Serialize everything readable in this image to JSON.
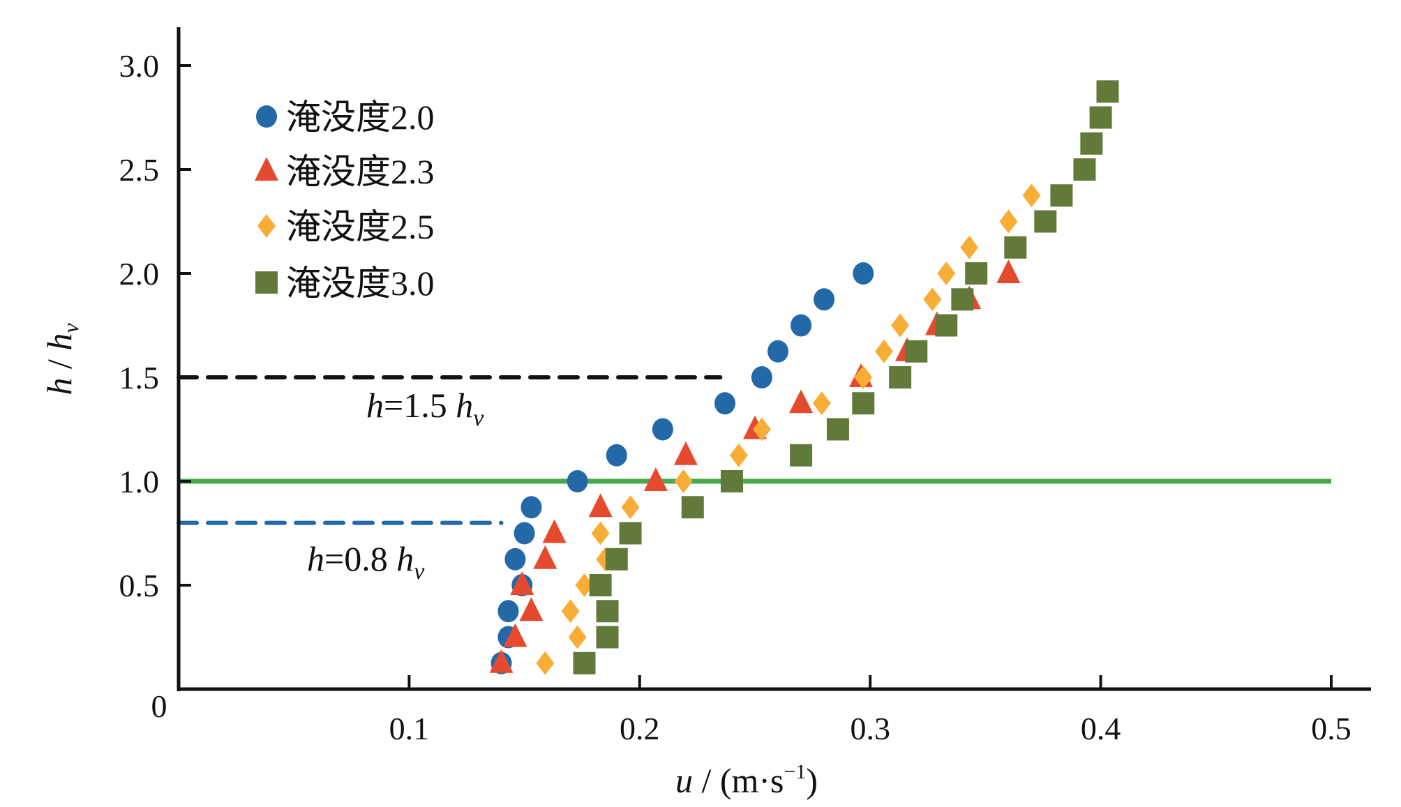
{
  "chart_data": {
    "type": "scatter",
    "xlabel": "u / (m·s⁻¹)",
    "xlabel_parts": {
      "var": "u",
      "unit": " / (m·s",
      "sup": "−1",
      "close": ")"
    },
    "ylabel_parts": {
      "var": "h",
      "sep": " / ",
      "var2": "h",
      "sub": "v"
    },
    "xlim": [
      0,
      0.5
    ],
    "ylim": [
      0,
      3.0
    ],
    "origin_label": "0",
    "xticks": [
      0.1,
      0.2,
      0.3,
      0.4,
      0.5
    ],
    "xtick_labels": [
      "0.1",
      "0.2",
      "0.3",
      "0.4",
      "0.5"
    ],
    "yticks": [
      0.5,
      1.0,
      1.5,
      2.0,
      2.5,
      3.0
    ],
    "ytick_labels": [
      "0.5",
      "1.0",
      "1.5",
      "2.0",
      "2.5",
      "3.0"
    ],
    "legend_position": "top-left",
    "series": [
      {
        "name": "淹没度2.0",
        "marker": "circle",
        "color": "#2369a8",
        "points": [
          [
            0.14,
            0.125
          ],
          [
            0.143,
            0.25
          ],
          [
            0.143,
            0.375
          ],
          [
            0.149,
            0.5
          ],
          [
            0.146,
            0.625
          ],
          [
            0.15,
            0.75
          ],
          [
            0.153,
            0.875
          ],
          [
            0.173,
            1.0
          ],
          [
            0.19,
            1.125
          ],
          [
            0.21,
            1.25
          ],
          [
            0.237,
            1.375
          ],
          [
            0.253,
            1.5
          ],
          [
            0.26,
            1.625
          ],
          [
            0.27,
            1.75
          ],
          [
            0.28,
            1.875
          ],
          [
            0.297,
            2.0
          ]
        ]
      },
      {
        "name": "淹没度2.3",
        "marker": "triangle",
        "color": "#e64a2e",
        "points": [
          [
            0.14,
            0.125
          ],
          [
            0.146,
            0.25
          ],
          [
            0.153,
            0.375
          ],
          [
            0.149,
            0.5
          ],
          [
            0.159,
            0.625
          ],
          [
            0.163,
            0.75
          ],
          [
            0.183,
            0.875
          ],
          [
            0.207,
            1.0
          ],
          [
            0.22,
            1.125
          ],
          [
            0.25,
            1.25
          ],
          [
            0.27,
            1.375
          ],
          [
            0.296,
            1.5
          ],
          [
            0.316,
            1.625
          ],
          [
            0.329,
            1.75
          ],
          [
            0.343,
            1.875
          ],
          [
            0.36,
            2.0
          ]
        ]
      },
      {
        "name": "淹没度2.5",
        "marker": "diamond",
        "color": "#f8ae36",
        "points": [
          [
            0.159,
            0.125
          ],
          [
            0.173,
            0.25
          ],
          [
            0.17,
            0.375
          ],
          [
            0.176,
            0.5
          ],
          [
            0.185,
            0.625
          ],
          [
            0.183,
            0.75
          ],
          [
            0.196,
            0.875
          ],
          [
            0.219,
            1.0
          ],
          [
            0.243,
            1.125
          ],
          [
            0.253,
            1.25
          ],
          [
            0.279,
            1.375
          ],
          [
            0.297,
            1.5
          ],
          [
            0.306,
            1.625
          ],
          [
            0.313,
            1.75
          ],
          [
            0.327,
            1.875
          ],
          [
            0.333,
            2.0
          ],
          [
            0.343,
            2.125
          ],
          [
            0.36,
            2.25
          ],
          [
            0.37,
            2.375
          ]
        ]
      },
      {
        "name": "淹没度3.0",
        "marker": "square",
        "color": "#617a3a",
        "points": [
          [
            0.176,
            0.125
          ],
          [
            0.186,
            0.25
          ],
          [
            0.186,
            0.375
          ],
          [
            0.183,
            0.5
          ],
          [
            0.19,
            0.625
          ],
          [
            0.196,
            0.75
          ],
          [
            0.223,
            0.875
          ],
          [
            0.24,
            1.0
          ],
          [
            0.27,
            1.125
          ],
          [
            0.286,
            1.25
          ],
          [
            0.297,
            1.375
          ],
          [
            0.313,
            1.5
          ],
          [
            0.32,
            1.625
          ],
          [
            0.333,
            1.75
          ],
          [
            0.34,
            1.875
          ],
          [
            0.346,
            2.0
          ],
          [
            0.363,
            2.125
          ],
          [
            0.376,
            2.25
          ],
          [
            0.383,
            2.375
          ],
          [
            0.393,
            2.5
          ],
          [
            0.396,
            2.625
          ],
          [
            0.4,
            2.75
          ],
          [
            0.403,
            2.875
          ]
        ]
      }
    ],
    "reference_lines": [
      {
        "y": 1.5,
        "x_range": [
          0,
          0.235
        ],
        "style": "dashed",
        "color": "#111111",
        "label_var": "h",
        "label_mid": "=1.5 ",
        "label_var2": "h",
        "label_sub": "v"
      },
      {
        "y": 0.8,
        "x_range": [
          0,
          0.14
        ],
        "style": "dashed",
        "color": "#2369a8",
        "label_var": "h",
        "label_mid": "=0.8 ",
        "label_var2": "h",
        "label_sub": "v"
      },
      {
        "y": 1.0,
        "x_range": [
          0,
          0.5
        ],
        "style": "solid",
        "color": "#4aa84e"
      }
    ]
  }
}
